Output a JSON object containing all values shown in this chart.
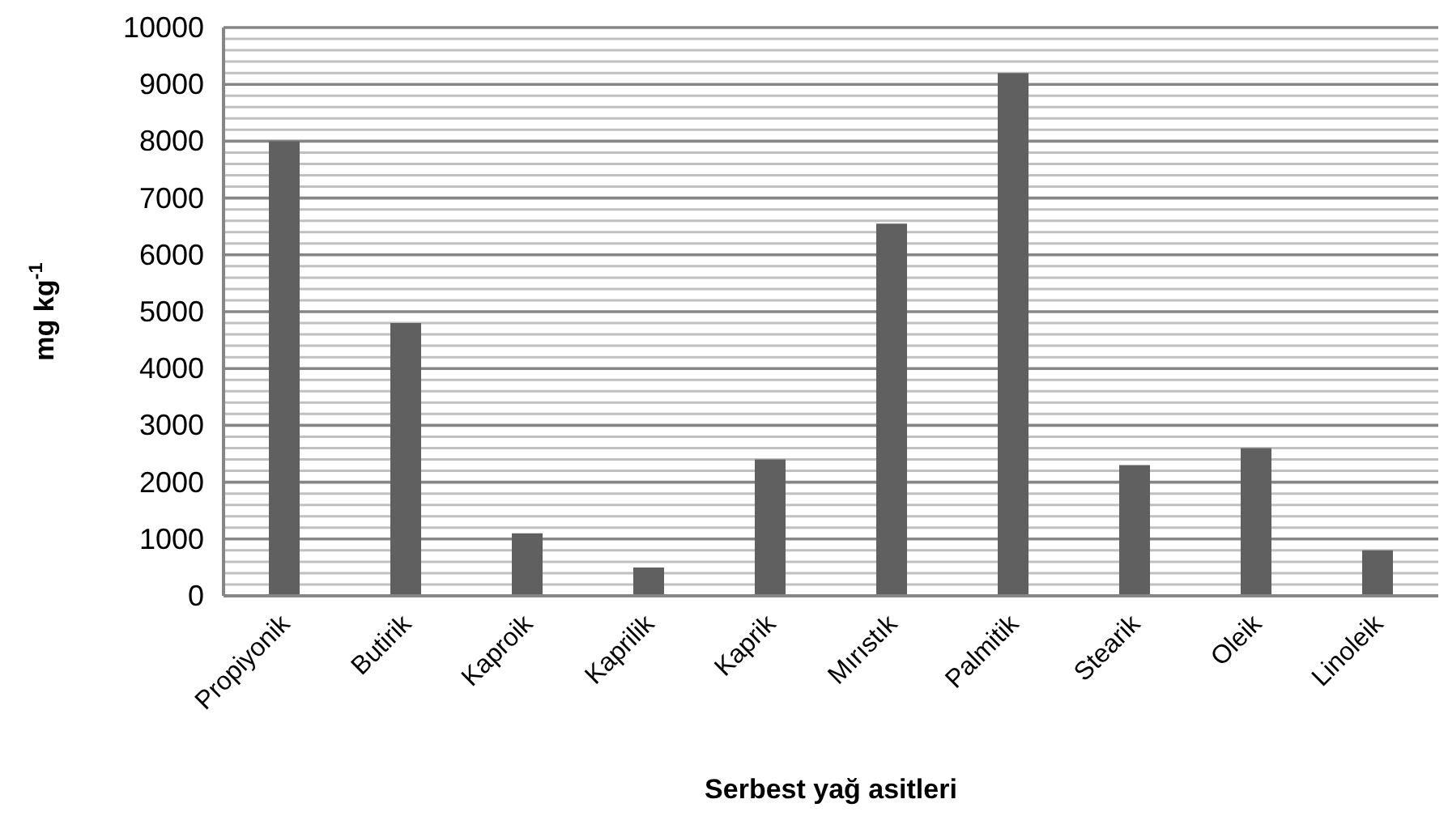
{
  "chart_data": {
    "type": "bar",
    "xlabel": "Serbest yağ asitleri",
    "ylabel": "mg kg$^{-1}$",
    "categories": [
      "Propiyonik",
      "Butirik",
      "Kaproik",
      "Kaprilik",
      "Kaprik",
      "Mırıstık",
      "Palmitik",
      "Stearik",
      "Oleik",
      "Linoleik"
    ],
    "values": [
      8000,
      4800,
      1100,
      500,
      2400,
      6550,
      9200,
      2300,
      2600,
      800
    ],
    "color": "#606060",
    "ylim": [
      0,
      10000
    ],
    "yticks": [
      0,
      {
        "value": 200,
        "label": null
      },
      {
        "value": 400,
        "label": null
      },
      {
        "value": 600,
        "label": null
      },
      {
        "value": 800,
        "label": null
      },
      1000,
      {
        "value": 1200,
        "label": null
      },
      {
        "value": 1400,
        "label": null
      },
      {
        "value": 1600,
        "label": null
      },
      {
        "value": 1800,
        "label": null
      },
      2000,
      {
        "value": 2200,
        "label": null
      },
      {
        "value": 2400,
        "label": null
      },
      {
        "value": 2600,
        "label": null
      },
      {
        "value": 2800,
        "label": null
      },
      3000,
      {
        "value": 3200,
        "label": null
      },
      {
        "value": 3400,
        "label": null
      },
      {
        "value": 3600,
        "label": null
      },
      {
        "value": 3800,
        "label": null
      },
      4000,
      {
        "value": 4200,
        "label": null
      },
      {
        "value": 4400,
        "label": null
      },
      {
        "value": 4600,
        "label": null
      },
      {
        "value": 4800,
        "label": null
      },
      5000,
      {
        "value": 5200,
        "label": null
      },
      {
        "value": 5400,
        "label": null
      },
      {
        "value": 5600,
        "label": null
      },
      {
        "value": 5800,
        "label": null
      },
      6000,
      {
        "value": 6200,
        "label": null
      },
      {
        "value": 6400,
        "label": null
      },
      {
        "value": 6600,
        "label": null
      },
      {
        "value": 6800,
        "label": null
      },
      7000,
      {
        "value": 7200,
        "label": null
      },
      {
        "value": 7400,
        "label": null
      },
      {
        "value": 7600,
        "label": null
      },
      {
        "value": 7800,
        "label": null
      },
      8000,
      {
        "value": 8200,
        "label": null
      },
      {
        "value": 8400,
        "label": null
      },
      {
        "value": 8600,
        "label": null
      },
      {
        "value": 8800,
        "label": null
      },
      9000,
      {
        "value": 9200,
        "label": null
      },
      {
        "value": 9400,
        "label": null
      },
      {
        "value": 9600,
        "label": null
      },
      {
        "value": 9800,
        "label": null
      },
      10000
    ],
    "grid": "y"
  }
}
